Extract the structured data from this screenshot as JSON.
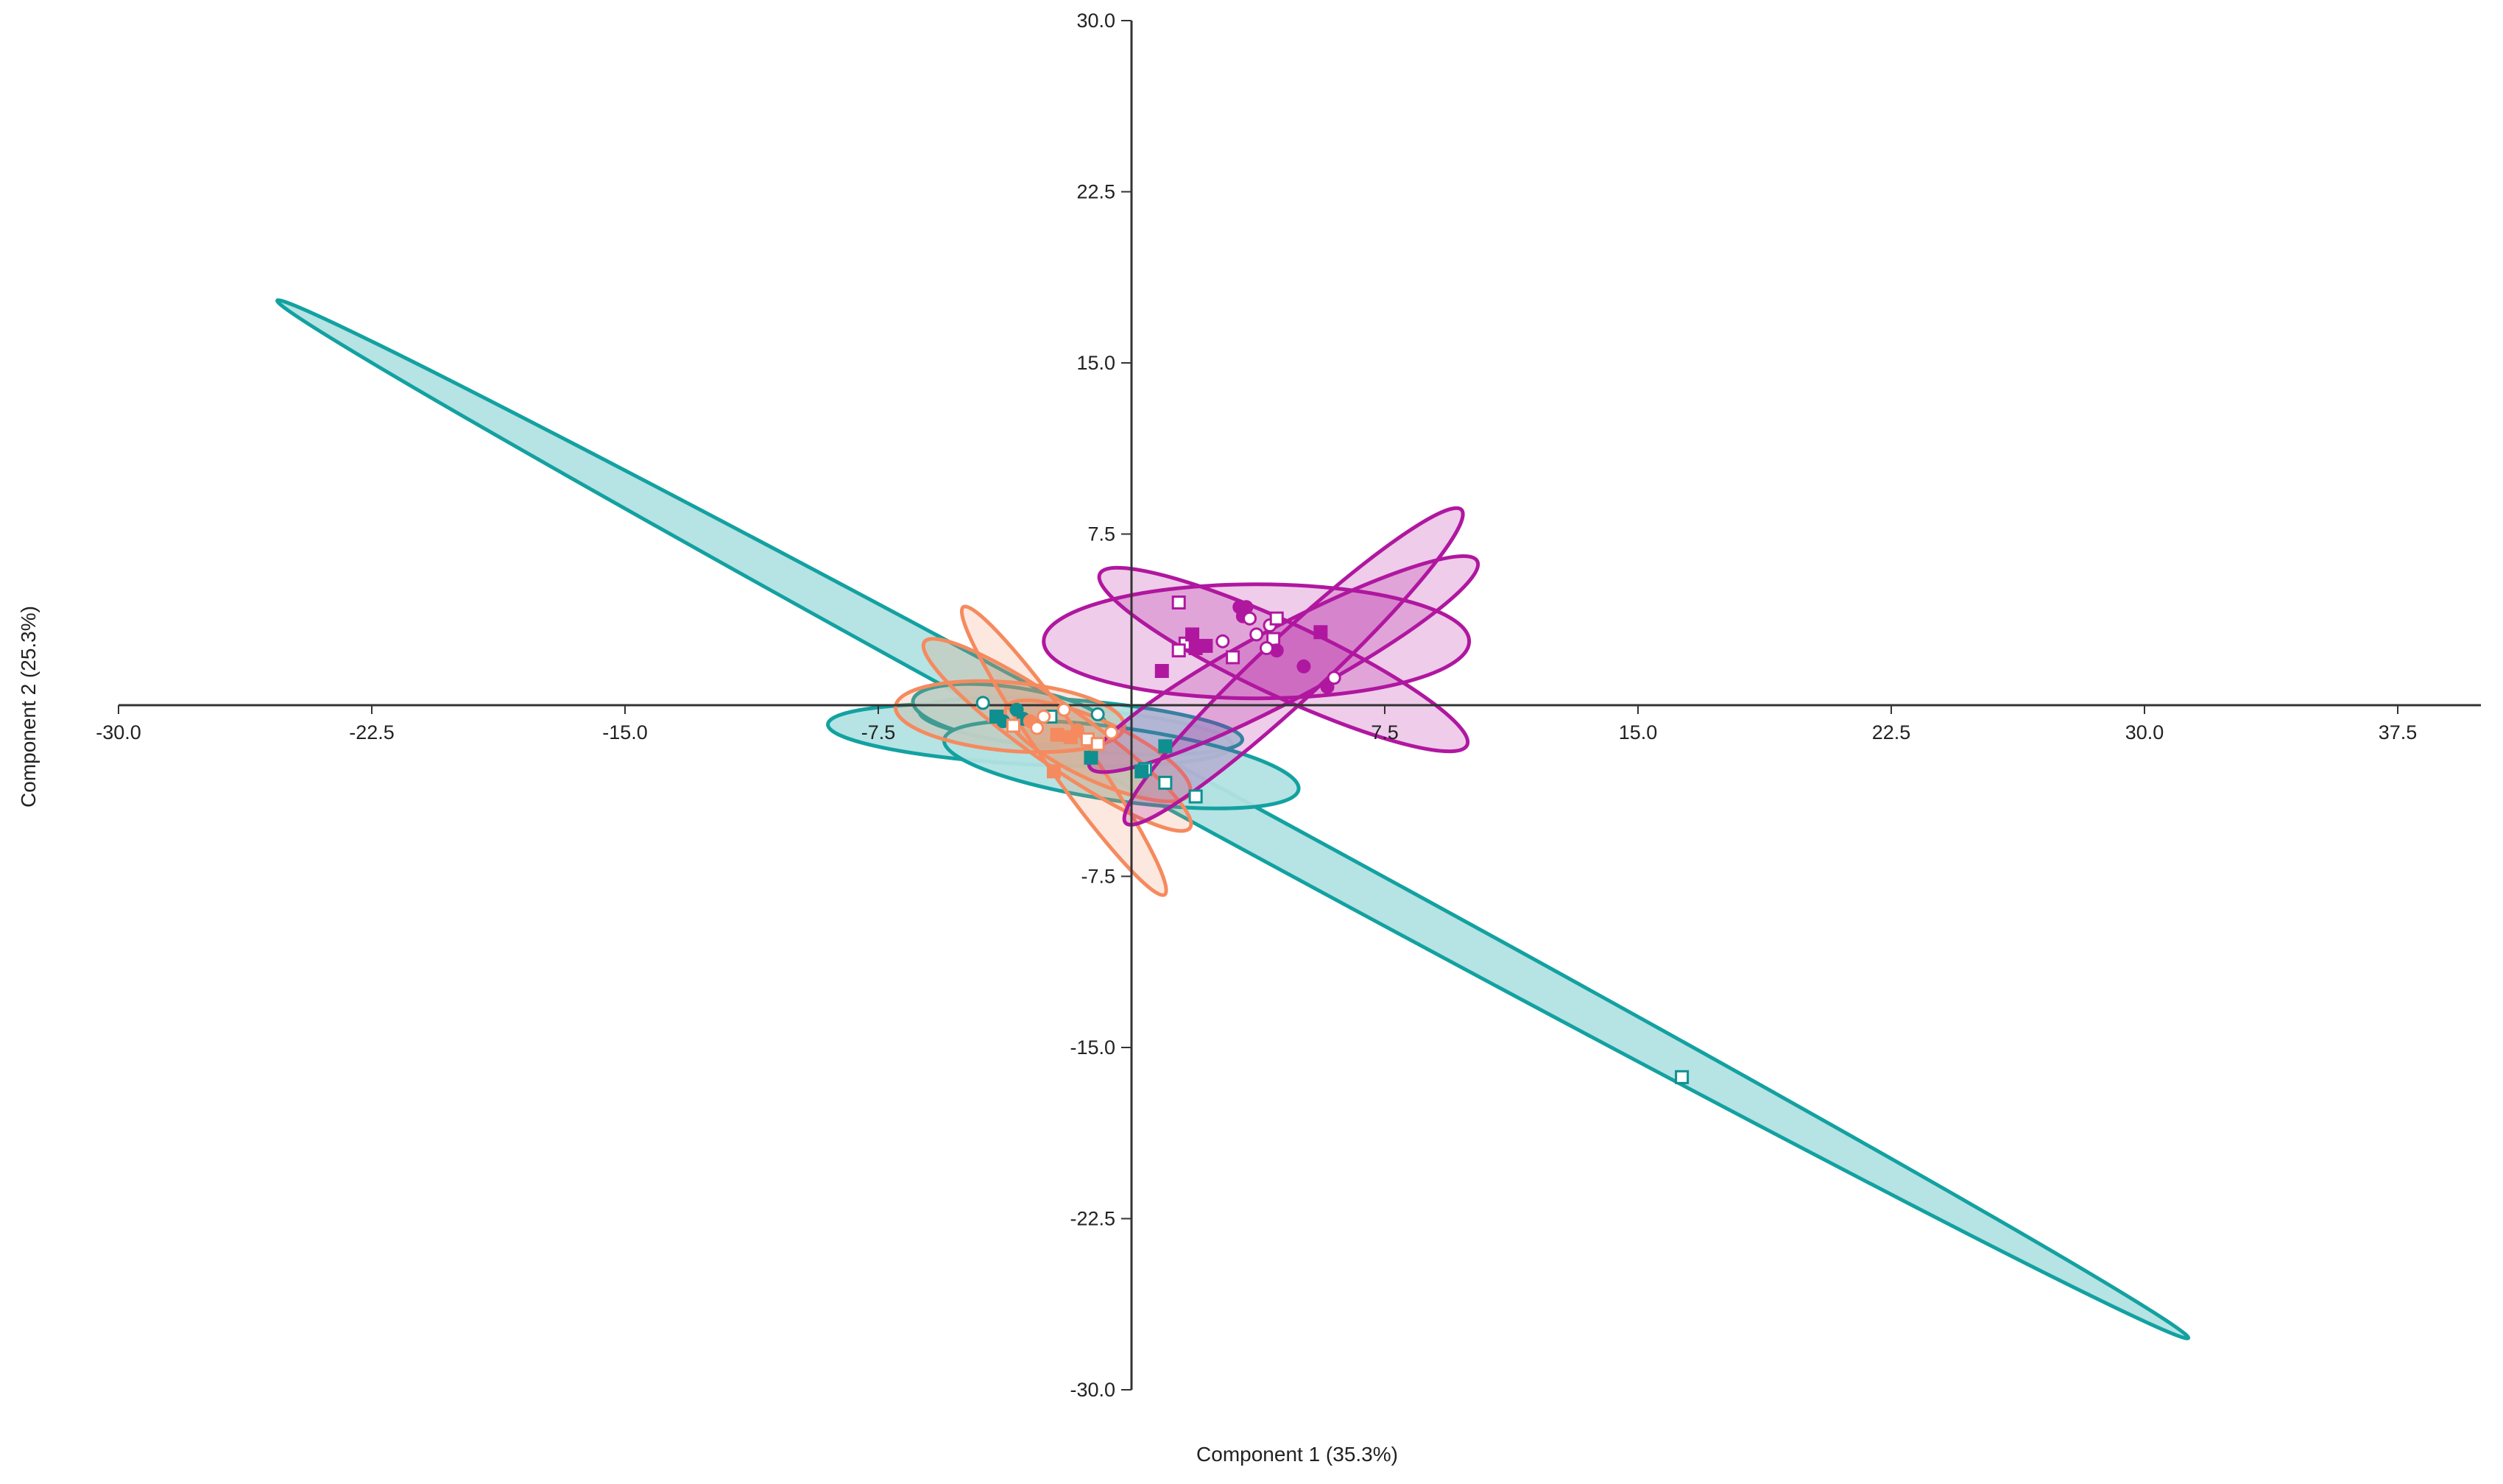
{
  "chart_data": {
    "type": "scatter",
    "title": "",
    "xlabel": "Component 1 (35.3%)",
    "ylabel": "Component 2 (25.3%)",
    "xlim": [
      -30,
      40
    ],
    "ylim": [
      -30,
      30
    ],
    "x_ticks": [
      "-30.0",
      "-22.5",
      "-15.0",
      "-7.5",
      "7.5",
      "15.0",
      "22.5",
      "30.0",
      "37.5"
    ],
    "y_ticks": [
      "30.0",
      "22.5",
      "15.0",
      "7.5",
      "-7.5",
      "-15.0",
      "-22.5",
      "-30.0"
    ],
    "grid": false,
    "colors": {
      "teal": "#13a1a1",
      "teal_fill": "#b2e2e2",
      "orange": "#f58a5f",
      "magenta": "#b0179f",
      "axis": "#333333"
    },
    "ellipses": [
      {
        "group": "teal",
        "cx": 3.0,
        "cy": -5.0,
        "rx": 32.2,
        "ry": 0.95,
        "angle": -28.5
      },
      {
        "group": "teal",
        "cx": -3.0,
        "cy": -1.3,
        "rx": 6.0,
        "ry": 1.3,
        "angle": -3
      },
      {
        "group": "teal",
        "cx": -1.5,
        "cy": -0.9,
        "rx": 4.8,
        "ry": 1.1,
        "angle": -5
      },
      {
        "group": "teal",
        "cx": -3.6,
        "cy": -0.4,
        "rx": 2.9,
        "ry": 1.2,
        "angle": -8
      },
      {
        "group": "teal",
        "cx": -0.3,
        "cy": -2.6,
        "rx": 5.3,
        "ry": 1.6,
        "angle": -8
      },
      {
        "group": "orange",
        "cx": -3.6,
        "cy": -0.5,
        "rx": 3.4,
        "ry": 1.5,
        "angle": -5
      },
      {
        "group": "orange",
        "cx": -2.2,
        "cy": -1.3,
        "rx": 4.8,
        "ry": 1.3,
        "angle": -35
      },
      {
        "group": "orange",
        "cx": -2.0,
        "cy": -2.0,
        "rx": 5.2,
        "ry": 0.95,
        "angle": -55
      },
      {
        "group": "orange",
        "cx": -1.0,
        "cy": -2.0,
        "rx": 3.0,
        "ry": 1.3,
        "angle": -25
      },
      {
        "group": "magenta",
        "cx": 3.7,
        "cy": 2.8,
        "rx": 6.3,
        "ry": 2.5,
        "angle": 0
      },
      {
        "group": "magenta",
        "cx": 4.8,
        "cy": 1.7,
        "rx": 6.8,
        "ry": 1.4,
        "angle": 43
      },
      {
        "group": "magenta",
        "cx": 4.5,
        "cy": 1.8,
        "rx": 6.5,
        "ry": 1.6,
        "angle": 28
      },
      {
        "group": "magenta",
        "cx": 4.5,
        "cy": 2.0,
        "rx": 6.0,
        "ry": 1.6,
        "angle": -25
      }
    ],
    "points": [
      {
        "x": 16.3,
        "y": -16.3,
        "group": "teal",
        "marker": "square-open"
      },
      {
        "x": 1.9,
        "y": -4.0,
        "group": "teal",
        "marker": "square-open"
      },
      {
        "x": 1.0,
        "y": -3.4,
        "group": "teal",
        "marker": "square-open"
      },
      {
        "x": 0.4,
        "y": -2.8,
        "group": "teal",
        "marker": "square-open"
      },
      {
        "x": 0.3,
        "y": -2.9,
        "group": "teal",
        "marker": "square-filled"
      },
      {
        "x": 1.0,
        "y": -1.8,
        "group": "teal",
        "marker": "square-filled"
      },
      {
        "x": -1.2,
        "y": -2.3,
        "group": "teal",
        "marker": "square-filled"
      },
      {
        "x": -1.0,
        "y": -0.4,
        "group": "teal",
        "marker": "circle-open"
      },
      {
        "x": -3.2,
        "y": -0.6,
        "group": "teal",
        "marker": "circle-filled"
      },
      {
        "x": -3.8,
        "y": -0.7,
        "group": "teal",
        "marker": "circle-filled"
      },
      {
        "x": -3.4,
        "y": -0.2,
        "group": "teal",
        "marker": "circle-filled"
      },
      {
        "x": -2.4,
        "y": -0.5,
        "group": "teal",
        "marker": "square-open"
      },
      {
        "x": -4.4,
        "y": 0.1,
        "group": "teal",
        "marker": "circle-open"
      },
      {
        "x": -4.0,
        "y": -0.5,
        "group": "teal",
        "marker": "square-filled"
      },
      {
        "x": -2.3,
        "y": -2.9,
        "group": "orange",
        "marker": "square-filled"
      },
      {
        "x": -2.2,
        "y": -1.3,
        "group": "orange",
        "marker": "square-filled"
      },
      {
        "x": -1.8,
        "y": -1.4,
        "group": "orange",
        "marker": "square-filled"
      },
      {
        "x": -2.0,
        "y": -0.2,
        "group": "orange",
        "marker": "circle-open"
      },
      {
        "x": -2.6,
        "y": -0.5,
        "group": "orange",
        "marker": "circle-open"
      },
      {
        "x": -3.0,
        "y": -0.7,
        "group": "orange",
        "marker": "circle-filled"
      },
      {
        "x": -2.8,
        "y": -1.0,
        "group": "orange",
        "marker": "circle-open"
      },
      {
        "x": -1.3,
        "y": -1.5,
        "group": "orange",
        "marker": "square-open"
      },
      {
        "x": -0.6,
        "y": -1.2,
        "group": "orange",
        "marker": "circle-open"
      },
      {
        "x": -1.0,
        "y": -1.7,
        "group": "orange",
        "marker": "square-open"
      },
      {
        "x": -3.5,
        "y": -0.9,
        "group": "orange",
        "marker": "square-open"
      },
      {
        "x": -1.6,
        "y": -1.1,
        "group": "orange",
        "marker": "circle-filled"
      },
      {
        "x": 1.4,
        "y": 4.5,
        "group": "magenta",
        "marker": "square-open"
      },
      {
        "x": 1.6,
        "y": 2.7,
        "group": "magenta",
        "marker": "square-open"
      },
      {
        "x": 1.8,
        "y": 3.1,
        "group": "magenta",
        "marker": "square-filled"
      },
      {
        "x": 1.9,
        "y": 2.5,
        "group": "magenta",
        "marker": "square-filled"
      },
      {
        "x": 2.2,
        "y": 2.6,
        "group": "magenta",
        "marker": "square-filled"
      },
      {
        "x": 0.9,
        "y": 1.5,
        "group": "magenta",
        "marker": "square-filled"
      },
      {
        "x": 1.4,
        "y": 2.4,
        "group": "magenta",
        "marker": "square-open"
      },
      {
        "x": 2.7,
        "y": 2.8,
        "group": "magenta",
        "marker": "circle-open"
      },
      {
        "x": 3.0,
        "y": 2.1,
        "group": "magenta",
        "marker": "square-open"
      },
      {
        "x": 3.3,
        "y": 3.9,
        "group": "magenta",
        "marker": "circle-filled"
      },
      {
        "x": 3.4,
        "y": 4.3,
        "group": "magenta",
        "marker": "circle-filled"
      },
      {
        "x": 3.2,
        "y": 4.3,
        "group": "magenta",
        "marker": "circle-filled"
      },
      {
        "x": 3.7,
        "y": 3.1,
        "group": "magenta",
        "marker": "circle-open"
      },
      {
        "x": 3.5,
        "y": 3.8,
        "group": "magenta",
        "marker": "circle-open"
      },
      {
        "x": 4.1,
        "y": 3.5,
        "group": "magenta",
        "marker": "circle-open"
      },
      {
        "x": 4.2,
        "y": 2.9,
        "group": "magenta",
        "marker": "square-open"
      },
      {
        "x": 4.3,
        "y": 3.8,
        "group": "magenta",
        "marker": "square-open"
      },
      {
        "x": 4.3,
        "y": 2.4,
        "group": "magenta",
        "marker": "circle-filled"
      },
      {
        "x": 4.0,
        "y": 2.5,
        "group": "magenta",
        "marker": "circle-open"
      },
      {
        "x": 5.1,
        "y": 1.7,
        "group": "magenta",
        "marker": "circle-filled"
      },
      {
        "x": 5.6,
        "y": 3.2,
        "group": "magenta",
        "marker": "square-filled"
      },
      {
        "x": 5.8,
        "y": 0.8,
        "group": "magenta",
        "marker": "circle-filled"
      },
      {
        "x": 6.0,
        "y": 1.2,
        "group": "magenta",
        "marker": "circle-open"
      }
    ]
  }
}
